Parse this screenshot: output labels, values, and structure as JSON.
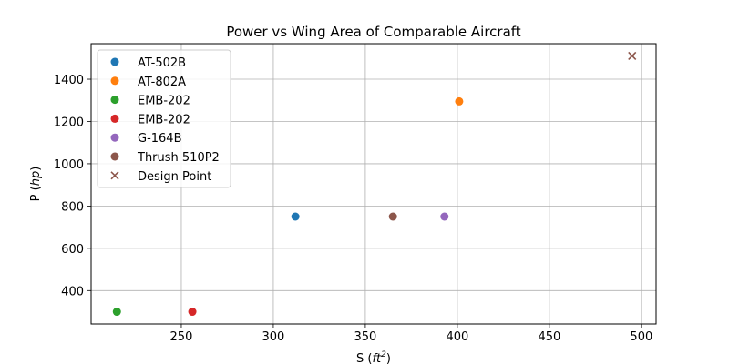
{
  "chart_data": {
    "type": "scatter",
    "title": "Power vs Wing Area of Comparable Aircraft",
    "xlabel": "S",
    "xlabel_unit_base": "ft",
    "xlabel_unit_exp": "2",
    "ylabel": "P",
    "ylabel_unit": "hp",
    "xlim": [
      201,
      508
    ],
    "ylim": [
      242,
      1568
    ],
    "xticks": [
      250,
      300,
      350,
      400,
      450,
      500
    ],
    "yticks": [
      400,
      600,
      800,
      1000,
      1200,
      1400
    ],
    "grid": true,
    "legend_position": "upper-left",
    "series": [
      {
        "name": "AT-502B",
        "marker": "circle",
        "color": "#1f77b4",
        "points": [
          {
            "x": 312,
            "y": 750
          }
        ]
      },
      {
        "name": "AT-802A",
        "marker": "circle",
        "color": "#ff7f0e",
        "points": [
          {
            "x": 401,
            "y": 1295
          }
        ]
      },
      {
        "name": "EMB-202",
        "marker": "circle",
        "color": "#2ca02c",
        "points": [
          {
            "x": 215,
            "y": 300
          }
        ]
      },
      {
        "name": "EMB-202",
        "marker": "circle",
        "color": "#d62728",
        "points": [
          {
            "x": 256,
            "y": 300
          }
        ]
      },
      {
        "name": "G-164B",
        "marker": "circle",
        "color": "#9467bd",
        "points": [
          {
            "x": 393,
            "y": 750
          }
        ]
      },
      {
        "name": "Thrush 510P2",
        "marker": "circle",
        "color": "#8c564b",
        "points": [
          {
            "x": 365,
            "y": 750
          }
        ]
      },
      {
        "name": "Design Point",
        "marker": "x",
        "color": "#8c564b",
        "points": [
          {
            "x": 495,
            "y": 1510
          }
        ]
      }
    ]
  }
}
